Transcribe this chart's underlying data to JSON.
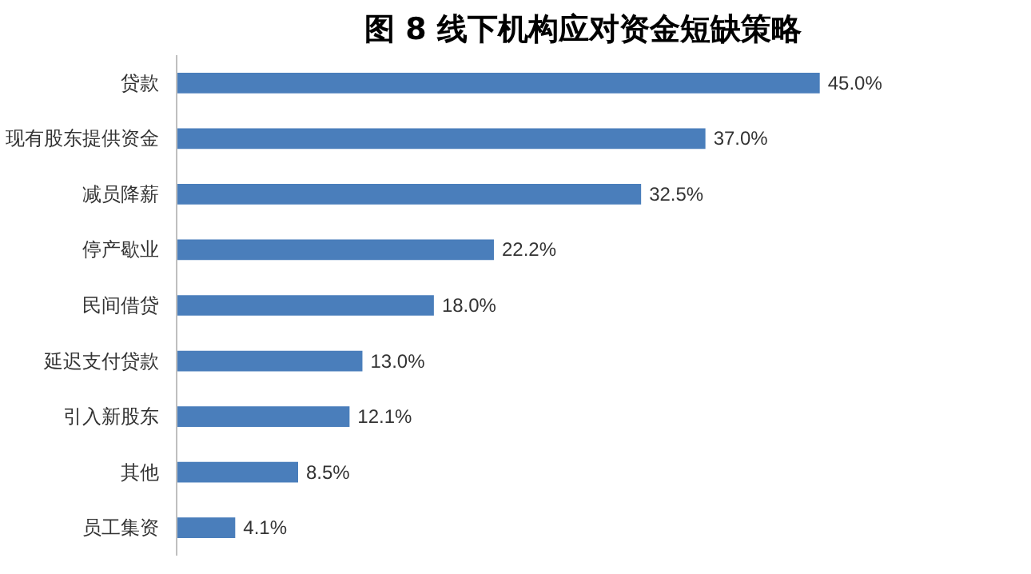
{
  "chart_data": {
    "type": "bar",
    "orientation": "horizontal",
    "title": "图 8  线下机构应对资金短缺策略",
    "categories": [
      "贷款",
      "现有股东提供资金",
      "减员降薪",
      "停产歇业",
      "民间借贷",
      "延迟支付贷款",
      "引入新股东",
      "其他",
      "员工集资"
    ],
    "values": [
      45.0,
      37.0,
      32.5,
      22.2,
      18.0,
      13.0,
      12.1,
      8.5,
      4.1
    ],
    "value_labels": [
      "45.0%",
      "37.0%",
      "32.5%",
      "22.2%",
      "18.0%",
      "13.0%",
      "12.1%",
      "8.5%",
      "4.1%"
    ],
    "color": "#4a7ebb",
    "grid": false,
    "tick_labels": "y"
  }
}
